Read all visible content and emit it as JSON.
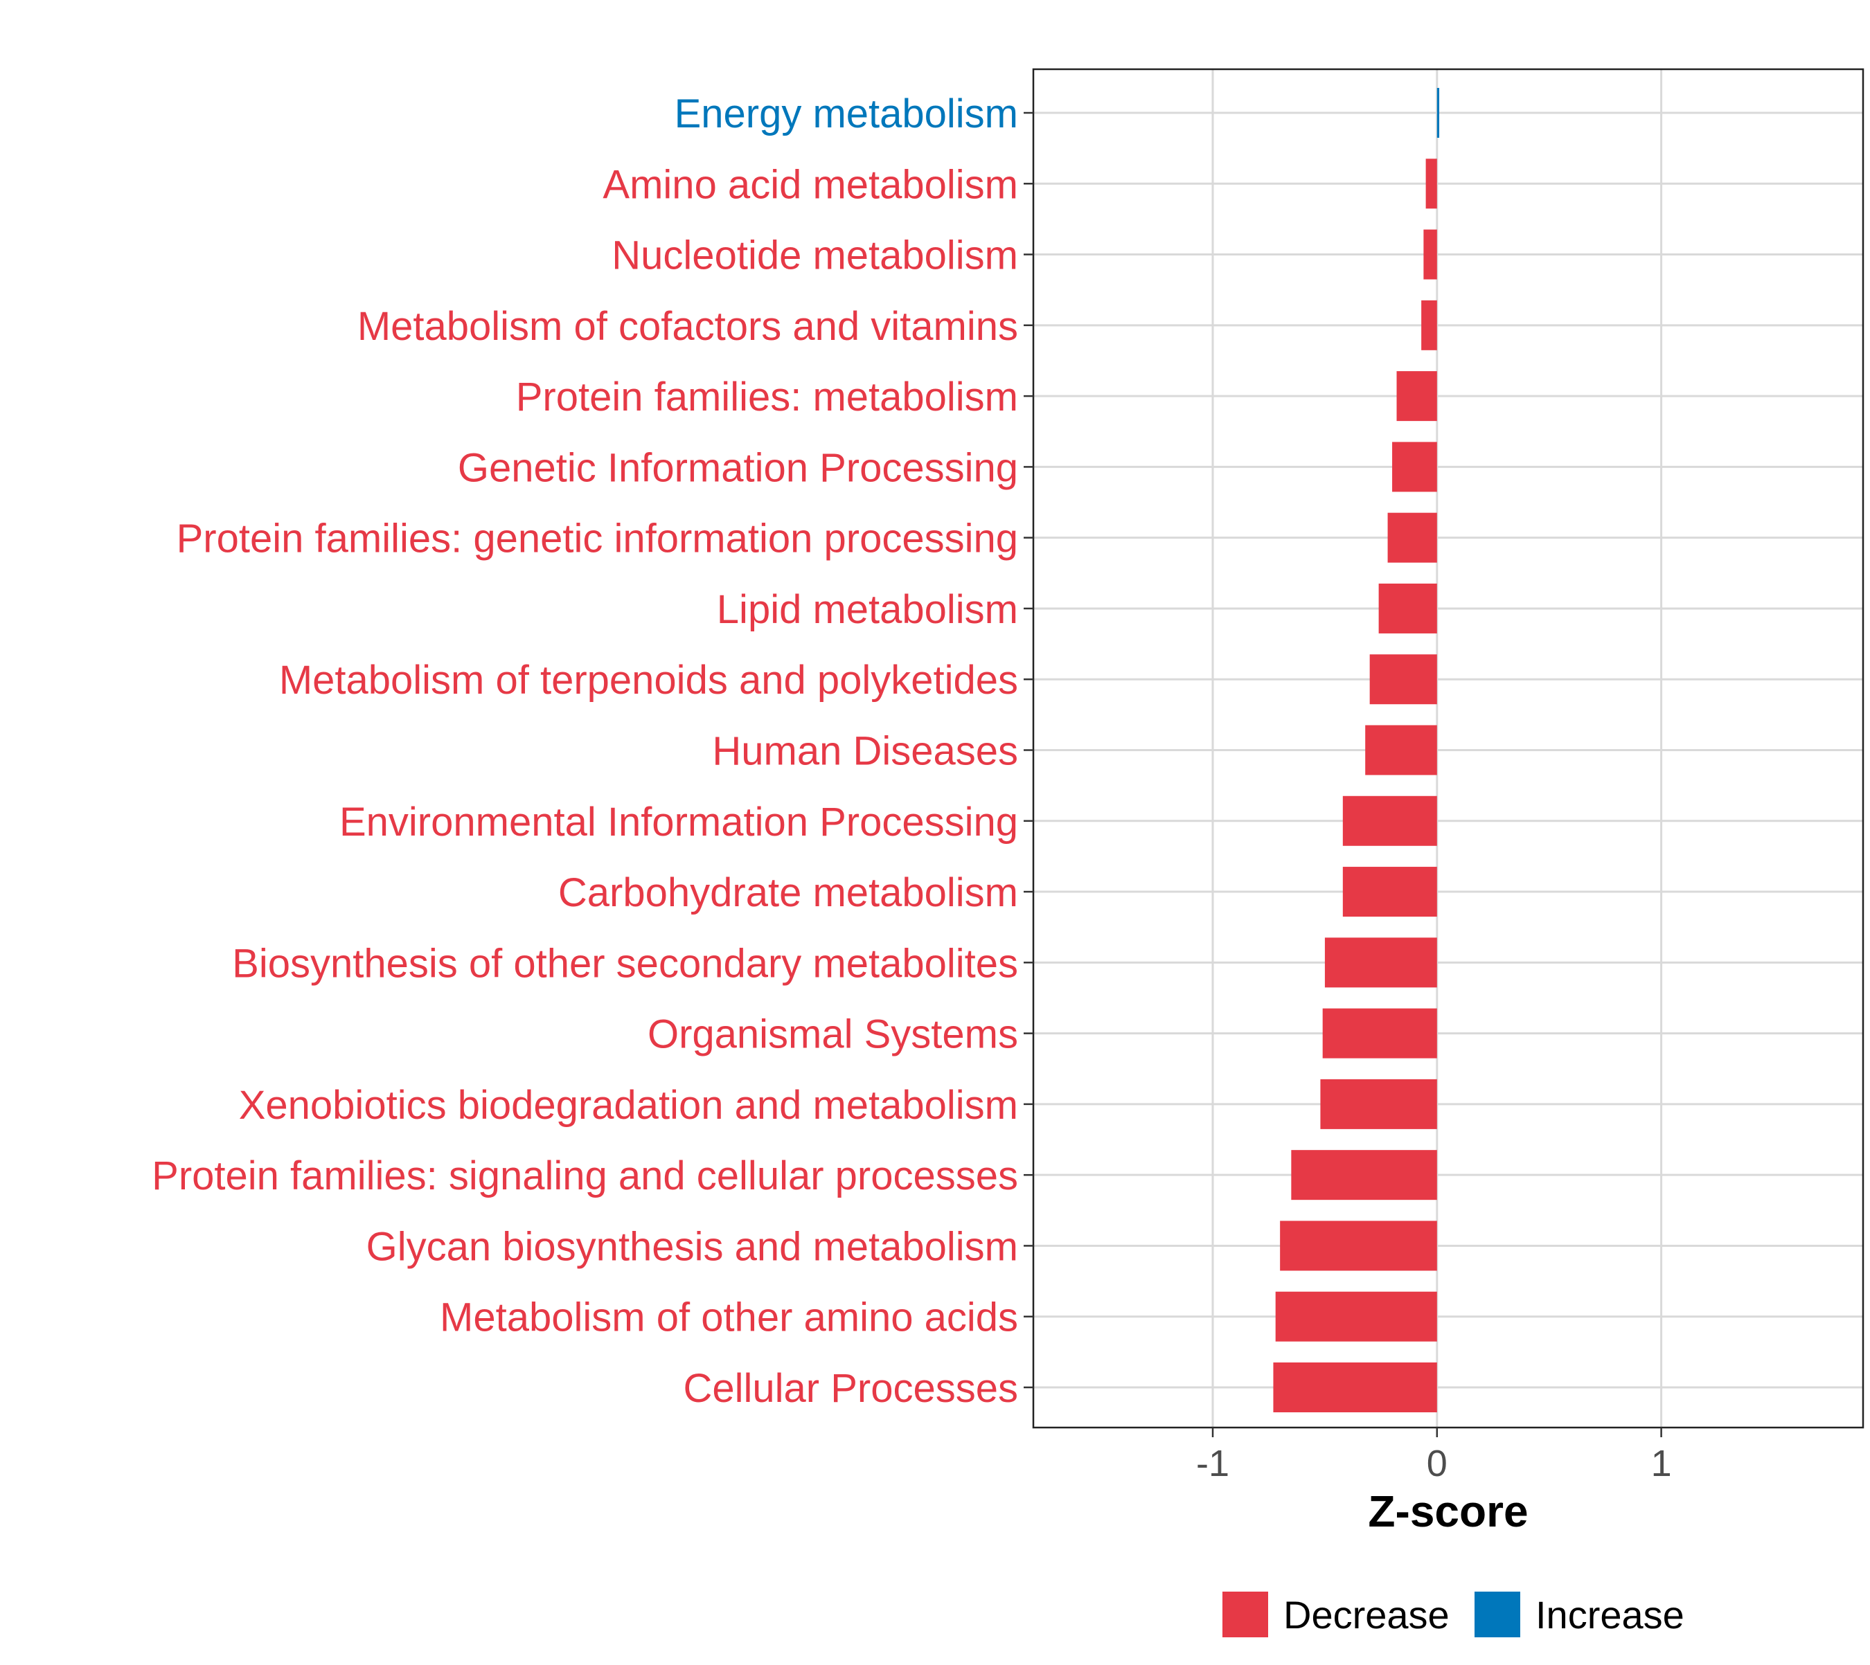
{
  "chart_data": {
    "type": "bar",
    "orientation": "horizontal",
    "title": "",
    "xlabel": "Z-score",
    "ylabel": "",
    "xlim": [
      -1.8,
      1.9
    ],
    "xticks": [
      {
        "value": -1,
        "label": "-1"
      },
      {
        "value": 0,
        "label": "0"
      },
      {
        "value": 1,
        "label": "1"
      }
    ],
    "grid": true,
    "legend_position": "bottom",
    "legend": [
      {
        "name": "Decrease",
        "color": "#e63946"
      },
      {
        "name": "Increase",
        "color": "#0077bb"
      }
    ],
    "categories": [
      "Energy metabolism",
      "Amino acid metabolism",
      "Nucleotide metabolism",
      "Metabolism of cofactors and vitamins",
      "Protein families: metabolism",
      "Genetic Information Processing",
      "Protein families: genetic information processing",
      "Lipid metabolism",
      "Metabolism of terpenoids and polyketides",
      "Human Diseases",
      "Environmental Information Processing",
      "Carbohydrate metabolism",
      "Biosynthesis of other secondary metabolites",
      "Organismal Systems",
      "Xenobiotics biodegradation and metabolism",
      "Protein families: signaling and cellular processes",
      "Glycan biosynthesis and metabolism",
      "Metabolism of other amino acids",
      "Cellular Processes"
    ],
    "values": [
      0.01,
      -0.05,
      -0.06,
      -0.07,
      -0.18,
      -0.2,
      -0.22,
      -0.26,
      -0.3,
      -0.32,
      -0.42,
      -0.42,
      -0.5,
      -0.51,
      -0.52,
      -0.65,
      -0.7,
      -0.72,
      -0.73
    ],
    "groups": [
      "Increase",
      "Decrease",
      "Decrease",
      "Decrease",
      "Decrease",
      "Decrease",
      "Decrease",
      "Decrease",
      "Decrease",
      "Decrease",
      "Decrease",
      "Decrease",
      "Decrease",
      "Decrease",
      "Decrease",
      "Decrease",
      "Decrease",
      "Decrease",
      "Decrease"
    ]
  }
}
